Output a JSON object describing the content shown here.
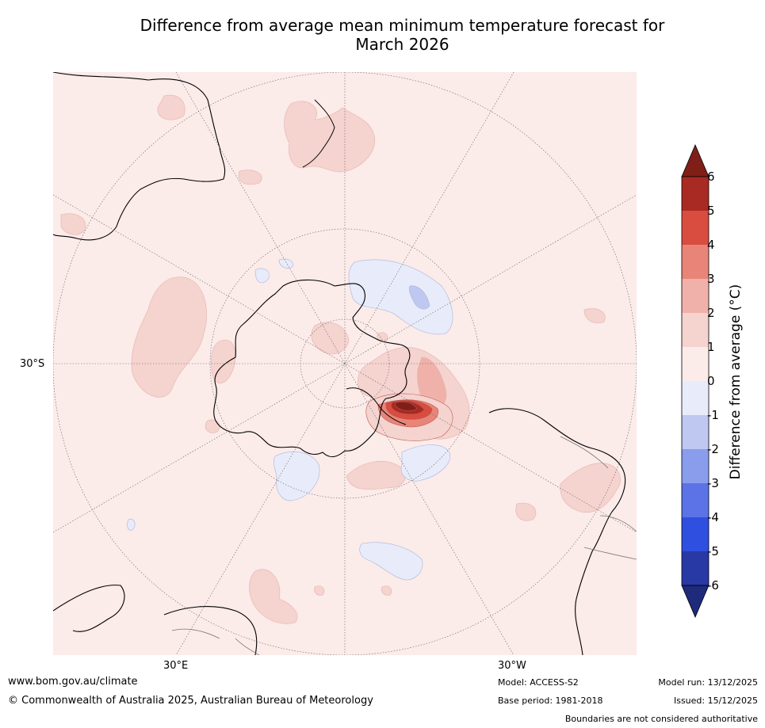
{
  "title": {
    "line1": "Difference from average mean minimum temperature forecast for",
    "line2": "March 2026"
  },
  "map": {
    "projection_center": "South Pole",
    "graticule_labels": {
      "lat": "30°S",
      "lon_east": "30°E",
      "lon_west": "30°W"
    },
    "anomaly_regions": [
      {
        "area": "Drake Passage / Antarctic Peninsula",
        "class": "4 to 6+"
      },
      {
        "area": "Weddell Sea east of Peninsula",
        "class": "1 to 3"
      },
      {
        "area": "Southern Pacific near Antarctica",
        "class": "-1 to -2"
      },
      {
        "area": "South Atlantic Ocean",
        "class": "-1 to 0"
      },
      {
        "area": "Indian Ocean south of Australia",
        "class": "1 to 2"
      },
      {
        "area": "New Zealand",
        "class": "1 to 2"
      }
    ],
    "colors": {
      "land_outline": "#000000",
      "ocean_background": "#fbebe9",
      "graticule": "#555555"
    }
  },
  "colorbar": {
    "label": "Difference from average (°C)",
    "ticks": [
      "6",
      "5",
      "4",
      "3",
      "2",
      "1",
      "0",
      "-1",
      "-2",
      "-3",
      "-4",
      "-5",
      "-6"
    ],
    "levels": [
      {
        "range": ">6",
        "color": "#7f1f18"
      },
      {
        "range": "5 to 6",
        "color": "#a82a22"
      },
      {
        "range": "4 to 5",
        "color": "#d94c40"
      },
      {
        "range": "3 to 4",
        "color": "#e98479"
      },
      {
        "range": "2 to 3",
        "color": "#f0b1aa"
      },
      {
        "range": "1 to 2",
        "color": "#f5d3cf"
      },
      {
        "range": "0 to 1",
        "color": "#fbebe9"
      },
      {
        "range": "-1 to 0",
        "color": "#e8ecfa"
      },
      {
        "range": "-2 to -1",
        "color": "#bec8f1"
      },
      {
        "range": "-3 to -2",
        "color": "#8a9cec"
      },
      {
        "range": "-4 to -3",
        "color": "#5b73e6"
      },
      {
        "range": "-5 to -4",
        "color": "#2f4fe0"
      },
      {
        "range": "-6 to -5",
        "color": "#2839a6"
      },
      {
        "range": "<-6",
        "color": "#1e2a7a"
      }
    ]
  },
  "footer": {
    "website": "www.bom.gov.au/climate",
    "copyright": "© Commonwealth of Australia 2025, Australian Bureau of Meteorology",
    "model": "Model: ACCESS-S2",
    "base_period": "Base period: 1981-2018",
    "model_run": "Model run: 13/12/2025",
    "issued": "Issued: 15/12/2025",
    "disclaimer": "Boundaries are not considered authoritative"
  }
}
